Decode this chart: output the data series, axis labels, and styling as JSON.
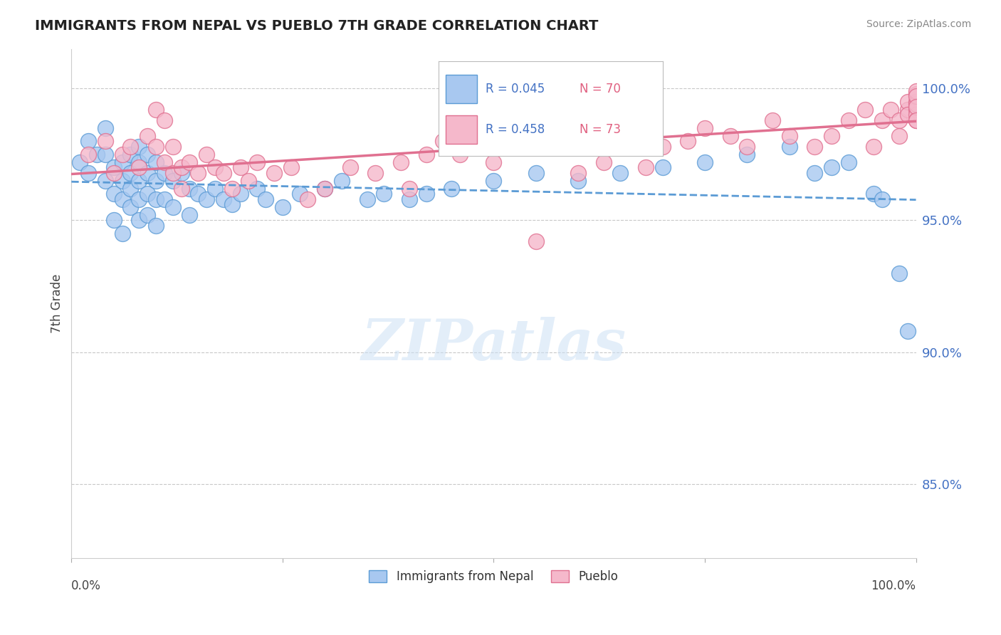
{
  "title": "IMMIGRANTS FROM NEPAL VS PUEBLO 7TH GRADE CORRELATION CHART",
  "source": "Source: ZipAtlas.com",
  "ylabel": "7th Grade",
  "ytick_values": [
    1.0,
    0.95,
    0.9,
    0.85
  ],
  "xmin": 0.0,
  "xmax": 1.0,
  "ymin": 0.822,
  "ymax": 1.015,
  "blue_R": "0.045",
  "blue_N": "70",
  "pink_R": "0.458",
  "pink_N": "73",
  "blue_face_color": "#a8c8f0",
  "blue_edge_color": "#5b9bd5",
  "pink_face_color": "#f5b8cb",
  "pink_edge_color": "#e07090",
  "blue_line_color": "#5b9bd5",
  "pink_line_color": "#e07090",
  "watermark_text": "ZIPatlas",
  "legend_labels": [
    "Immigrants from Nepal",
    "Pueblo"
  ],
  "background_color": "#ffffff",
  "grid_color": "#c8c8c8",
  "blue_scatter_x": [
    0.01,
    0.02,
    0.02,
    0.03,
    0.04,
    0.04,
    0.04,
    0.05,
    0.05,
    0.05,
    0.06,
    0.06,
    0.06,
    0.06,
    0.07,
    0.07,
    0.07,
    0.07,
    0.08,
    0.08,
    0.08,
    0.08,
    0.08,
    0.09,
    0.09,
    0.09,
    0.09,
    0.1,
    0.1,
    0.1,
    0.1,
    0.11,
    0.11,
    0.12,
    0.12,
    0.13,
    0.14,
    0.14,
    0.15,
    0.16,
    0.17,
    0.18,
    0.19,
    0.2,
    0.22,
    0.23,
    0.25,
    0.27,
    0.3,
    0.32,
    0.35,
    0.37,
    0.4,
    0.42,
    0.45,
    0.5,
    0.55,
    0.6,
    0.65,
    0.7,
    0.75,
    0.8,
    0.85,
    0.88,
    0.9,
    0.92,
    0.95,
    0.96,
    0.98,
    0.99
  ],
  "blue_scatter_y": [
    0.972,
    0.98,
    0.968,
    0.975,
    0.985,
    0.975,
    0.965,
    0.97,
    0.96,
    0.95,
    0.972,
    0.965,
    0.958,
    0.945,
    0.975,
    0.968,
    0.962,
    0.955,
    0.978,
    0.972,
    0.965,
    0.958,
    0.95,
    0.975,
    0.968,
    0.96,
    0.952,
    0.972,
    0.965,
    0.958,
    0.948,
    0.968,
    0.958,
    0.965,
    0.955,
    0.968,
    0.962,
    0.952,
    0.96,
    0.958,
    0.962,
    0.958,
    0.956,
    0.96,
    0.962,
    0.958,
    0.955,
    0.96,
    0.962,
    0.965,
    0.958,
    0.96,
    0.958,
    0.96,
    0.962,
    0.965,
    0.968,
    0.965,
    0.968,
    0.97,
    0.972,
    0.975,
    0.978,
    0.968,
    0.97,
    0.972,
    0.96,
    0.958,
    0.93,
    0.908
  ],
  "pink_scatter_x": [
    0.02,
    0.04,
    0.05,
    0.06,
    0.07,
    0.08,
    0.09,
    0.1,
    0.1,
    0.11,
    0.11,
    0.12,
    0.12,
    0.13,
    0.13,
    0.14,
    0.15,
    0.16,
    0.17,
    0.18,
    0.19,
    0.2,
    0.21,
    0.22,
    0.24,
    0.26,
    0.28,
    0.3,
    0.33,
    0.36,
    0.39,
    0.4,
    0.42,
    0.44,
    0.46,
    0.48,
    0.5,
    0.52,
    0.55,
    0.58,
    0.6,
    0.63,
    0.65,
    0.68,
    0.7,
    0.73,
    0.75,
    0.78,
    0.8,
    0.83,
    0.85,
    0.88,
    0.9,
    0.92,
    0.94,
    0.95,
    0.96,
    0.97,
    0.98,
    0.98,
    0.99,
    0.99,
    0.99,
    1.0,
    1.0,
    1.0,
    1.0,
    1.0,
    1.0,
    1.0,
    1.0,
    1.0,
    1.0
  ],
  "pink_scatter_y": [
    0.975,
    0.98,
    0.968,
    0.975,
    0.978,
    0.97,
    0.982,
    0.992,
    0.978,
    0.988,
    0.972,
    0.968,
    0.978,
    0.97,
    0.962,
    0.972,
    0.968,
    0.975,
    0.97,
    0.968,
    0.962,
    0.97,
    0.965,
    0.972,
    0.968,
    0.97,
    0.958,
    0.962,
    0.97,
    0.968,
    0.972,
    0.962,
    0.975,
    0.98,
    0.975,
    0.978,
    0.972,
    0.978,
    0.942,
    0.98,
    0.968,
    0.972,
    0.978,
    0.97,
    0.978,
    0.98,
    0.985,
    0.982,
    0.978,
    0.988,
    0.982,
    0.978,
    0.982,
    0.988,
    0.992,
    0.978,
    0.988,
    0.992,
    0.988,
    0.982,
    0.992,
    0.995,
    0.99,
    0.998,
    0.995,
    0.992,
    0.99,
    0.988,
    0.994,
    0.999,
    0.997,
    0.993,
    0.988
  ]
}
